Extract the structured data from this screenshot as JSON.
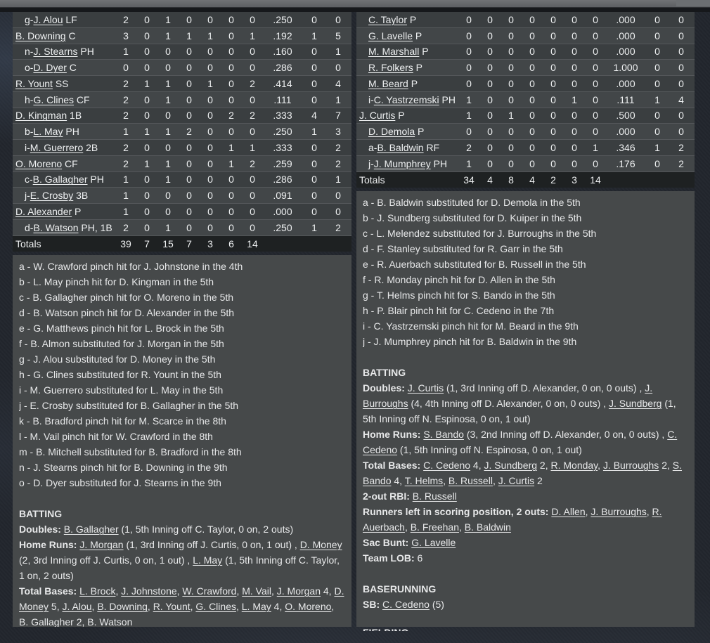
{
  "theme": {
    "page_bg": "#22262d",
    "top_bar": "#66686b",
    "panel_bg": "#46494a",
    "row_dark": "#3a3e40",
    "row_light": "#424648",
    "totals_bg": "#1e2122",
    "row_divider": "#54575a",
    "text": "#eef0f1"
  },
  "tables": {
    "left": {
      "rows": [
        {
          "prefix": "g-",
          "name": "J. Alou",
          "pos": "LF",
          "indent": 1,
          "stats": [
            "2",
            "0",
            "1",
            "0",
            "0",
            "0",
            "0",
            ".250",
            "0",
            "0"
          ]
        },
        {
          "prefix": "",
          "name": "B. Downing",
          "pos": "C",
          "indent": 0,
          "stats": [
            "3",
            "0",
            "1",
            "1",
            "1",
            "0",
            "1",
            ".192",
            "1",
            "5"
          ]
        },
        {
          "prefix": "n-",
          "name": "J. Stearns",
          "pos": "PH",
          "indent": 1,
          "stats": [
            "1",
            "0",
            "0",
            "0",
            "0",
            "0",
            "0",
            ".160",
            "0",
            "1"
          ]
        },
        {
          "prefix": "o-",
          "name": "D. Dyer",
          "pos": "C",
          "indent": 1,
          "stats": [
            "0",
            "0",
            "0",
            "0",
            "0",
            "0",
            "0",
            ".286",
            "0",
            "0"
          ]
        },
        {
          "prefix": "",
          "name": "R. Yount",
          "pos": "SS",
          "indent": 0,
          "stats": [
            "2",
            "1",
            "1",
            "0",
            "1",
            "0",
            "2",
            ".414",
            "0",
            "4"
          ]
        },
        {
          "prefix": "h-",
          "name": "G. Clines",
          "pos": "CF",
          "indent": 1,
          "stats": [
            "2",
            "0",
            "1",
            "0",
            "0",
            "0",
            "0",
            ".111",
            "0",
            "1"
          ]
        },
        {
          "prefix": "",
          "name": "D. Kingman",
          "pos": "1B",
          "indent": 0,
          "stats": [
            "2",
            "0",
            "0",
            "0",
            "0",
            "2",
            "2",
            ".333",
            "4",
            "7"
          ]
        },
        {
          "prefix": "b-",
          "name": "L. May",
          "pos": "PH",
          "indent": 1,
          "stats": [
            "1",
            "1",
            "1",
            "2",
            "0",
            "0",
            "0",
            ".250",
            "1",
            "3"
          ]
        },
        {
          "prefix": "i-",
          "name": "M. Guerrero",
          "pos": "2B",
          "indent": 1,
          "stats": [
            "2",
            "0",
            "0",
            "0",
            "0",
            "1",
            "1",
            ".333",
            "0",
            "2"
          ]
        },
        {
          "prefix": "",
          "name": "O. Moreno",
          "pos": "CF",
          "indent": 0,
          "stats": [
            "2",
            "1",
            "1",
            "0",
            "0",
            "1",
            "2",
            ".259",
            "0",
            "2"
          ]
        },
        {
          "prefix": "c-",
          "name": "B. Gallagher",
          "pos": "PH",
          "indent": 1,
          "stats": [
            "1",
            "0",
            "1",
            "0",
            "0",
            "0",
            "0",
            ".286",
            "0",
            "1"
          ]
        },
        {
          "prefix": "j-",
          "name": "E. Crosby",
          "pos": "3B",
          "indent": 1,
          "stats": [
            "1",
            "0",
            "0",
            "0",
            "0",
            "0",
            "0",
            ".091",
            "0",
            "0"
          ]
        },
        {
          "prefix": "",
          "name": "D. Alexander",
          "pos": "P",
          "indent": 0,
          "stats": [
            "1",
            "0",
            "0",
            "0",
            "0",
            "0",
            "0",
            ".000",
            "0",
            "0"
          ]
        },
        {
          "prefix": "d-",
          "name": "B. Watson",
          "pos": "PH, 1B",
          "indent": 1,
          "stats": [
            "2",
            "0",
            "1",
            "0",
            "0",
            "0",
            "0",
            ".250",
            "1",
            "2"
          ]
        }
      ],
      "totals": {
        "label": "Totals",
        "stats": [
          "39",
          "7",
          "15",
          "7",
          "3",
          "6",
          "14",
          "",
          "",
          ""
        ]
      }
    },
    "right": {
      "rows": [
        {
          "prefix": "",
          "name": "C. Taylor",
          "pos": "P",
          "indent": 1,
          "stats": [
            "0",
            "0",
            "0",
            "0",
            "0",
            "0",
            "0",
            ".000",
            "0",
            "0"
          ]
        },
        {
          "prefix": "",
          "name": "G. Lavelle",
          "pos": "P",
          "indent": 1,
          "stats": [
            "0",
            "0",
            "0",
            "0",
            "0",
            "0",
            "0",
            ".000",
            "0",
            "0"
          ]
        },
        {
          "prefix": "",
          "name": "M. Marshall",
          "pos": "P",
          "indent": 1,
          "stats": [
            "0",
            "0",
            "0",
            "0",
            "0",
            "0",
            "0",
            ".000",
            "0",
            "0"
          ]
        },
        {
          "prefix": "",
          "name": "R. Folkers",
          "pos": "P",
          "indent": 1,
          "stats": [
            "0",
            "0",
            "0",
            "0",
            "0",
            "0",
            "0",
            "1.000",
            "0",
            "0"
          ]
        },
        {
          "prefix": "",
          "name": "M. Beard",
          "pos": "P",
          "indent": 1,
          "stats": [
            "0",
            "0",
            "0",
            "0",
            "0",
            "0",
            "0",
            ".000",
            "0",
            "0"
          ]
        },
        {
          "prefix": "i-",
          "name": "C. Yastrzemski",
          "pos": "PH",
          "indent": 1,
          "stats": [
            "1",
            "0",
            "0",
            "0",
            "0",
            "1",
            "0",
            ".111",
            "1",
            "4"
          ]
        },
        {
          "prefix": "",
          "name": "J. Curtis",
          "pos": "P",
          "indent": 0,
          "stats": [
            "1",
            "0",
            "1",
            "0",
            "0",
            "0",
            "0",
            ".500",
            "0",
            "0"
          ]
        },
        {
          "prefix": "",
          "name": "D. Demola",
          "pos": "P",
          "indent": 1,
          "stats": [
            "0",
            "0",
            "0",
            "0",
            "0",
            "0",
            "0",
            ".000",
            "0",
            "0"
          ]
        },
        {
          "prefix": "a-",
          "name": "B. Baldwin",
          "pos": "RF",
          "indent": 1,
          "stats": [
            "2",
            "0",
            "0",
            "0",
            "0",
            "0",
            "1",
            ".346",
            "1",
            "2"
          ]
        },
        {
          "prefix": "j-",
          "name": "J. Mumphrey",
          "pos": "PH",
          "indent": 1,
          "stats": [
            "1",
            "0",
            "0",
            "0",
            "0",
            "0",
            "0",
            ".176",
            "0",
            "2"
          ]
        }
      ],
      "totals": {
        "label": "Totals",
        "stats": [
          "34",
          "4",
          "8",
          "4",
          "2",
          "3",
          "14",
          "",
          "",
          ""
        ]
      }
    }
  },
  "left_panel": {
    "substitutions": [
      "a - W. Crawford pinch hit for J. Johnstone in the 4th",
      "b - L. May pinch hit for D. Kingman in the 5th",
      "c - B. Gallagher pinch hit for O. Moreno in the 5th",
      "d - B. Watson pinch hit for D. Alexander in the 5th",
      "e - G. Matthews pinch hit for L. Brock in the 5th",
      "f - B. Almon substituted for J. Morgan in the 5th",
      "g - J. Alou substituted for D. Money in the 5th",
      "h - G. Clines substituted for R. Yount in the 5th",
      "i - M. Guerrero substituted for L. May in the 5th",
      "j - E. Crosby substituted for B. Gallagher in the 5th",
      "k - B. Bradford pinch hit for M. Scarce in the 8th",
      "l - M. Vail pinch hit for W. Crawford in the 8th",
      "m - B. Mitchell substituted for B. Bradford in the 8th",
      "n - J. Stearns pinch hit for B. Downing in the 9th",
      "o - D. Dyer substituted for J. Stearns in the 9th"
    ],
    "sections": [
      {
        "title": "BATTING",
        "entries": [
          [
            {
              "t": "Doubles: ",
              "s": "b"
            },
            {
              "t": "B. Gallagher",
              "s": "u"
            },
            {
              "t": " (1, 5th Inning off C. Taylor, 0 on, 2 outs)"
            }
          ],
          [
            {
              "t": "Home Runs: ",
              "s": "b"
            },
            {
              "t": "J. Morgan",
              "s": "u"
            },
            {
              "t": " (1, 3rd Inning off J. Curtis, 0 on, 1 out) , "
            },
            {
              "t": "D. Money",
              "s": "u"
            },
            {
              "t": " (2, 3rd Inning off J. Curtis, 0 on, 1 out) , "
            },
            {
              "t": "L. May",
              "s": "u"
            },
            {
              "t": " (1, 5th Inning off C. Taylor, 1 on, 2 outs)"
            }
          ],
          [
            {
              "t": "Total Bases: ",
              "s": "b"
            },
            {
              "t": "L. Brock",
              "s": "u"
            },
            {
              "t": ", "
            },
            {
              "t": "J. Johnstone",
              "s": "u"
            },
            {
              "t": ", "
            },
            {
              "t": "W. Crawford",
              "s": "u"
            },
            {
              "t": ", "
            },
            {
              "t": "M. Vail",
              "s": "u"
            },
            {
              "t": ", "
            },
            {
              "t": "J. Morgan",
              "s": "u"
            },
            {
              "t": " 4, "
            },
            {
              "t": "D. Money",
              "s": "u"
            },
            {
              "t": " 5, "
            },
            {
              "t": "J. Alou",
              "s": "u"
            },
            {
              "t": ", "
            },
            {
              "t": "B. Downing",
              "s": "u"
            },
            {
              "t": ", "
            },
            {
              "t": "R. Yount",
              "s": "u"
            },
            {
              "t": ", "
            },
            {
              "t": "G. Clines",
              "s": "u"
            },
            {
              "t": ", "
            },
            {
              "t": "L. May",
              "s": "u"
            },
            {
              "t": " 4, "
            },
            {
              "t": "O. Moreno",
              "s": "u"
            },
            {
              "t": ", "
            },
            {
              "t": "B. Gallagher",
              "s": "u"
            },
            {
              "t": " 2, "
            },
            {
              "t": "B. Watson",
              "s": "u"
            }
          ]
        ]
      }
    ]
  },
  "right_panel": {
    "substitutions": [
      "a - B. Baldwin substituted for D. Demola in the 5th",
      "b - J. Sundberg substituted for D. Kuiper in the 5th",
      "c - L. Melendez substituted for J. Burroughs in the 5th",
      "d - F. Stanley substituted for R. Garr in the 5th",
      "e - R. Auerbach substituted for B. Russell in the 5th",
      "f - R. Monday pinch hit for D. Allen in the 5th",
      "g - T. Helms pinch hit for S. Bando in the 5th",
      "h - P. Blair pinch hit for C. Cedeno in the 7th",
      "i - C. Yastrzemski pinch hit for M. Beard in the 9th",
      "j - J. Mumphrey pinch hit for B. Baldwin in the 9th"
    ],
    "sections": [
      {
        "title": "BATTING",
        "entries": [
          [
            {
              "t": "Doubles: ",
              "s": "b"
            },
            {
              "t": "J. Curtis",
              "s": "u"
            },
            {
              "t": " (1, 3rd Inning off D. Alexander, 0 on, 0 outs) , "
            },
            {
              "t": "J. Burroughs",
              "s": "u"
            },
            {
              "t": " (4, 4th Inning off D. Alexander, 0 on, 0 outs) , "
            },
            {
              "t": "J. Sundberg",
              "s": "u"
            },
            {
              "t": " (1, 5th Inning off N. Espinosa, 0 on, 1 out)"
            }
          ],
          [
            {
              "t": "Home Runs: ",
              "s": "b"
            },
            {
              "t": "S. Bando",
              "s": "u"
            },
            {
              "t": " (3, 2nd Inning off D. Alexander, 0 on, 0 outs) , "
            },
            {
              "t": "C. Cedeno",
              "s": "u"
            },
            {
              "t": " (1, 5th Inning off N. Espinosa, 0 on, 1 out)"
            }
          ],
          [
            {
              "t": "Total Bases: ",
              "s": "b"
            },
            {
              "t": "C. Cedeno",
              "s": "u"
            },
            {
              "t": " 4, "
            },
            {
              "t": "J. Sundberg",
              "s": "u"
            },
            {
              "t": " 2, "
            },
            {
              "t": "R. Monday",
              "s": "u"
            },
            {
              "t": ", "
            },
            {
              "t": "J. Burroughs",
              "s": "u"
            },
            {
              "t": " 2, "
            },
            {
              "t": "S. Bando",
              "s": "u"
            },
            {
              "t": " 4, "
            },
            {
              "t": "T. Helms",
              "s": "u"
            },
            {
              "t": ", "
            },
            {
              "t": "B. Russell",
              "s": "u"
            },
            {
              "t": ", "
            },
            {
              "t": "J. Curtis",
              "s": "u"
            },
            {
              "t": " 2"
            }
          ],
          [
            {
              "t": "2-out RBI: ",
              "s": "b"
            },
            {
              "t": "B. Russell",
              "s": "u"
            }
          ],
          [
            {
              "t": "Runners left in scoring position, 2 outs: ",
              "s": "b"
            },
            {
              "t": "D. Allen",
              "s": "u"
            },
            {
              "t": ", "
            },
            {
              "t": "J. Burroughs",
              "s": "u"
            },
            {
              "t": ", "
            },
            {
              "t": "R. Auerbach",
              "s": "u"
            },
            {
              "t": ", "
            },
            {
              "t": "B. Freehan",
              "s": "u"
            },
            {
              "t": ", "
            },
            {
              "t": "B. Baldwin",
              "s": "u"
            }
          ],
          [
            {
              "t": "Sac Bunt: ",
              "s": "b"
            },
            {
              "t": "G. Lavelle",
              "s": "u"
            }
          ],
          [
            {
              "t": "Team LOB: ",
              "s": "b"
            },
            {
              "t": "6"
            }
          ]
        ]
      },
      {
        "title": "BASERUNNING",
        "entries": [
          [
            {
              "t": "SB: ",
              "s": "b"
            },
            {
              "t": "C. Cedeno",
              "s": "u"
            },
            {
              "t": " (5)"
            }
          ]
        ]
      }
    ],
    "fielding_clipped_title": "FIELDING"
  }
}
